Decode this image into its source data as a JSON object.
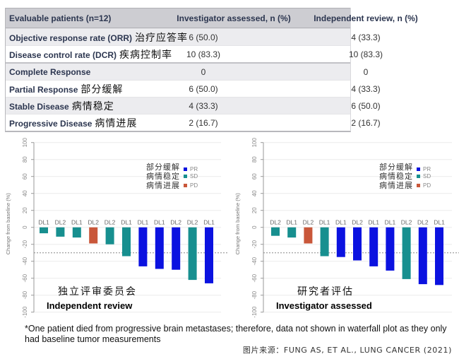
{
  "table": {
    "headers": [
      "Evaluable patients (n=12)",
      "Investigator assessed, n (%)",
      "Independent review, n (%)"
    ],
    "rows": [
      {
        "label": "Objective response rate (ORR)",
        "label_zh": "治疗应答率",
        "investigator": "6 (50.0)",
        "independent": "4 (33.3)"
      },
      {
        "label": "Disease control rate (DCR)",
        "label_zh": "疾病控制率",
        "investigator": "10 (83.3)",
        "independent": "10 (83.3)"
      },
      {
        "label": "Complete Response",
        "label_zh": "",
        "investigator": "0",
        "independent": "0"
      },
      {
        "label": "Partial Response",
        "label_zh": "部分缓解",
        "investigator": "6 (50.0)",
        "independent": "4 (33.3)"
      },
      {
        "label": "Stable Disease",
        "label_zh": "病情稳定",
        "investigator": "4 (33.3)",
        "independent": "6 (50.0)"
      },
      {
        "label": "Progressive Disease",
        "label_zh": "病情进展",
        "investigator": "2 (16.7)",
        "independent": "2 (16.7)"
      }
    ]
  },
  "colors": {
    "PR": "#0b12e0",
    "SD": "#178f8f",
    "PD": "#c9573a"
  },
  "chart_data": [
    {
      "type": "bar",
      "title": "Independent review",
      "title_zh": "独立评审委员会",
      "ylabel": "Change from baseline (%)",
      "ylim": [
        -100,
        100
      ],
      "yticks": [
        100,
        80,
        60,
        40,
        20,
        0,
        -20,
        -40,
        -60,
        -80,
        -100
      ],
      "reference_line": -30,
      "grid": true,
      "legend": {
        "position": "top-right",
        "entries": [
          {
            "key": "PR",
            "label_zh": "部分缓解"
          },
          {
            "key": "SD",
            "label_zh": "病情稳定"
          },
          {
            "key": "PD",
            "label_zh": "病情进展"
          }
        ]
      },
      "categories": [
        "DL1",
        "DL2",
        "DL1",
        "DL2",
        "DL2",
        "DL1",
        "DL1",
        "DL1",
        "DL2",
        "DL2",
        "DL1"
      ],
      "values": [
        -7,
        -11,
        -12,
        -19,
        -20,
        -34,
        -46,
        -49,
        -50,
        -62,
        -66
      ],
      "response": [
        "SD",
        "SD",
        "SD",
        "PD",
        "SD",
        "SD",
        "PR",
        "PR",
        "PR",
        "SD",
        "PR"
      ]
    },
    {
      "type": "bar",
      "title": "Investigator assessed",
      "title_zh": "研究者评估",
      "ylabel": "Change from baseline (%)",
      "ylim": [
        -100,
        100
      ],
      "yticks": [
        100,
        80,
        60,
        40,
        20,
        0,
        -20,
        -40,
        -60,
        -80,
        -100
      ],
      "reference_line": -30,
      "grid": true,
      "legend": {
        "position": "top-right",
        "entries": [
          {
            "key": "PR",
            "label_zh": "部分缓解"
          },
          {
            "key": "SD",
            "label_zh": "病情稳定"
          },
          {
            "key": "PD",
            "label_zh": "病情进展"
          }
        ]
      },
      "categories": [
        "DL2",
        "DL1",
        "DL2",
        "DL1",
        "DL1",
        "DL2",
        "DL1",
        "DL1",
        "DL2",
        "DL2",
        "DL1"
      ],
      "values": [
        -10,
        -12,
        -19,
        -34,
        -35,
        -39,
        -46,
        -51,
        -61,
        -67,
        -68
      ],
      "response": [
        "SD",
        "SD",
        "PD",
        "SD",
        "PR",
        "PR",
        "PR",
        "PR",
        "SD",
        "PR",
        "PR"
      ]
    }
  ],
  "footnote": "*One patient died from progressive brain metastases; therefore, data not shown in waterfall plot as they only had baseline tumor measurements",
  "source": "图片来源：FUNG AS, ET AL., LUNG CANCER (2021)"
}
